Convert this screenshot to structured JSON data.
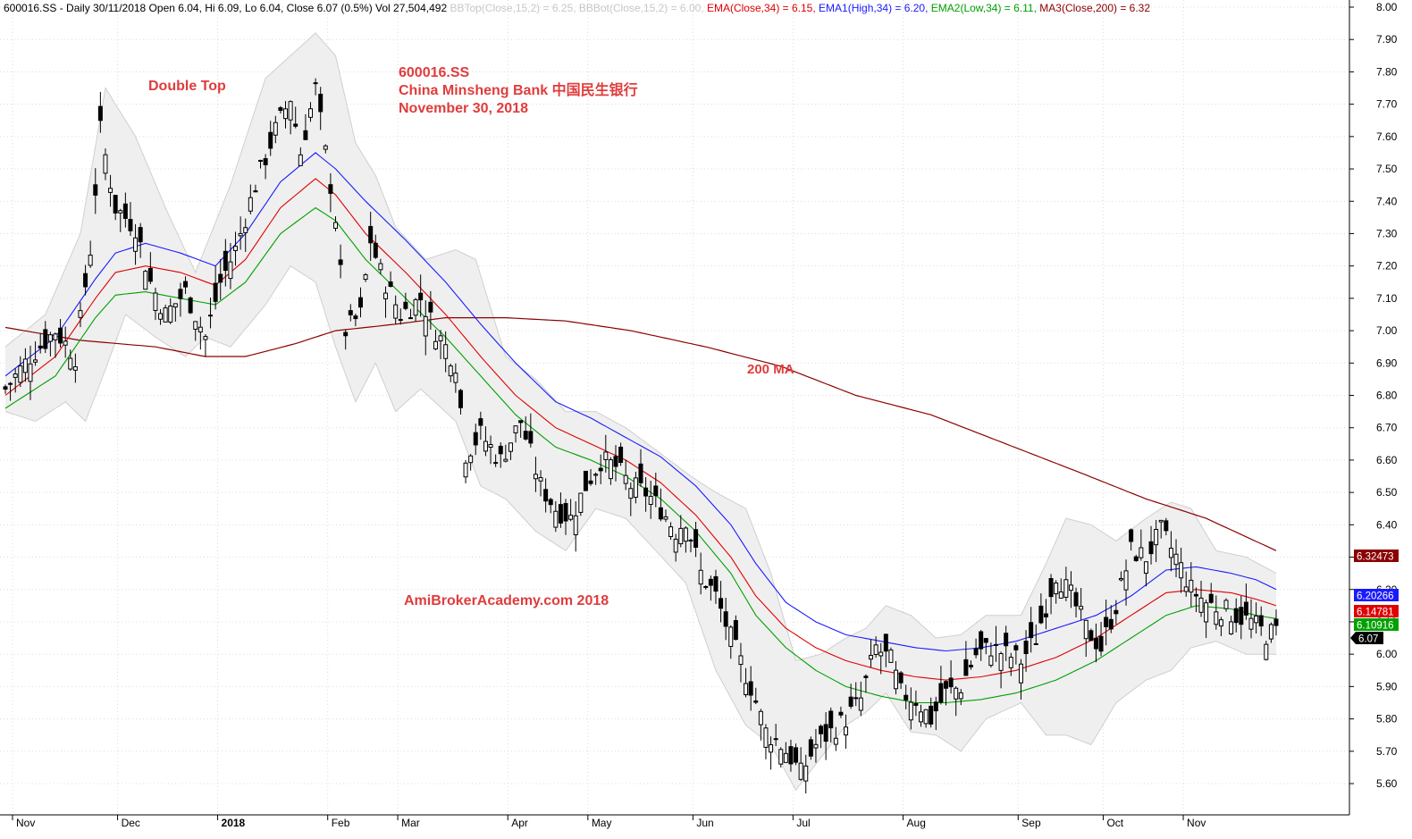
{
  "chart_data": {
    "type": "candlestick",
    "symbol": "600016.SS",
    "header": {
      "prefix": "600016.SS - Daily 30/11/2018 Open 6.04, Hi 6.09, Lo 6.04, Close 6.07 (0.5%) Vol 27,504,492",
      "items": [
        {
          "text": "BBTop(Close,15,2) = 6.25,",
          "color": "#c8c8c8"
        },
        {
          "text": "BBBot(Close,15,2) = 6.00,",
          "color": "#c8c8c8"
        },
        {
          "text": "EMA(Close,34) = 6.15,",
          "color": "#e00000"
        },
        {
          "text": "EMA1(High,34) = 6.20,",
          "color": "#1a1aff"
        },
        {
          "text": "EMA2(Low,34) = 6.11,",
          "color": "#00a000"
        },
        {
          "text": "MA3(Close,200) = 6.32",
          "color": "#8b0000"
        }
      ]
    },
    "annotations": {
      "pattern": "Double Top",
      "title_lines": [
        "600016.SS",
        "China Minsheng Bank 中国民生银行",
        "November 30, 2018"
      ],
      "ma_label": "200 MA",
      "watermark": "AmiBrokerAcademy.com  2018"
    },
    "ylim": [
      5.55,
      8.02
    ],
    "y_ticks": [
      "5.60",
      "5.70",
      "5.80",
      "5.90",
      "6.00",
      "6.10",
      "6.20",
      "6.30",
      "6.40",
      "6.50",
      "6.60",
      "6.70",
      "6.80",
      "6.90",
      "7.00",
      "7.10",
      "7.20",
      "7.30",
      "7.40",
      "7.50",
      "7.60",
      "7.70",
      "7.80",
      "7.90",
      "8.00"
    ],
    "x_months": [
      {
        "label": "Nov",
        "idx": 0,
        "bold": false
      },
      {
        "label": "Dec",
        "idx": 21,
        "bold": false
      },
      {
        "label": "2018",
        "idx": 41,
        "bold": true
      },
      {
        "label": "Feb",
        "idx": 63,
        "bold": false
      },
      {
        "label": "Mar",
        "idx": 77,
        "bold": false
      },
      {
        "label": "Apr",
        "idx": 99,
        "bold": false
      },
      {
        "label": "May",
        "idx": 115,
        "bold": false
      },
      {
        "label": "Jun",
        "idx": 136,
        "bold": false
      },
      {
        "label": "Jul",
        "idx": 156,
        "bold": false
      },
      {
        "label": "Aug",
        "idx": 178,
        "bold": false
      },
      {
        "label": "Sep",
        "idx": 201,
        "bold": false
      },
      {
        "label": "Oct",
        "idx": 218,
        "bold": false
      },
      {
        "label": "Nov",
        "idx": 234,
        "bold": false
      }
    ],
    "n_bars": 255,
    "close_anchors": [
      [
        0,
        6.82
      ],
      [
        5,
        6.92
      ],
      [
        10,
        7.0
      ],
      [
        14,
        6.92
      ],
      [
        17,
        7.25
      ],
      [
        19,
        7.62
      ],
      [
        22,
        7.38
      ],
      [
        26,
        7.32
      ],
      [
        29,
        7.15
      ],
      [
        32,
        7.05
      ],
      [
        36,
        7.12
      ],
      [
        40,
        6.98
      ],
      [
        43,
        7.15
      ],
      [
        46,
        7.25
      ],
      [
        50,
        7.45
      ],
      [
        54,
        7.62
      ],
      [
        57,
        7.72
      ],
      [
        59,
        7.55
      ],
      [
        62,
        7.75
      ],
      [
        64,
        7.55
      ],
      [
        66,
        7.35
      ],
      [
        68,
        7.0
      ],
      [
        71,
        7.05
      ],
      [
        73,
        7.28
      ],
      [
        75,
        7.18
      ],
      [
        79,
        7.05
      ],
      [
        83,
        7.1
      ],
      [
        86,
        7.0
      ],
      [
        90,
        6.9
      ],
      [
        92,
        6.62
      ],
      [
        95,
        6.68
      ],
      [
        99,
        6.6
      ],
      [
        103,
        6.72
      ],
      [
        107,
        6.52
      ],
      [
        110,
        6.45
      ],
      [
        113,
        6.42
      ],
      [
        116,
        6.52
      ],
      [
        119,
        6.6
      ],
      [
        122,
        6.58
      ],
      [
        125,
        6.52
      ],
      [
        128,
        6.5
      ],
      [
        131,
        6.45
      ],
      [
        134,
        6.38
      ],
      [
        136,
        6.42
      ],
      [
        139,
        6.25
      ],
      [
        142,
        6.18
      ],
      [
        145,
        6.05
      ],
      [
        149,
        5.9
      ],
      [
        152,
        5.76
      ],
      [
        155,
        5.72
      ],
      [
        157,
        5.68
      ],
      [
        159,
        5.63
      ],
      [
        162,
        5.72
      ],
      [
        165,
        5.76
      ],
      [
        168,
        5.8
      ],
      [
        171,
        5.86
      ],
      [
        174,
        6.02
      ],
      [
        177,
        5.98
      ],
      [
        179,
        5.88
      ],
      [
        182,
        5.86
      ],
      [
        185,
        5.8
      ],
      [
        188,
        5.88
      ],
      [
        191,
        5.9
      ],
      [
        194,
        6.0
      ],
      [
        197,
        6.02
      ],
      [
        200,
        6.0
      ],
      [
        203,
        5.98
      ],
      [
        206,
        6.05
      ],
      [
        210,
        6.25
      ],
      [
        213,
        6.18
      ],
      [
        216,
        6.08
      ],
      [
        219,
        6.02
      ],
      [
        222,
        6.15
      ],
      [
        225,
        6.32
      ],
      [
        228,
        6.3
      ],
      [
        231,
        6.38
      ],
      [
        234,
        6.3
      ],
      [
        237,
        6.2
      ],
      [
        240,
        6.16
      ],
      [
        243,
        6.14
      ],
      [
        246,
        6.12
      ],
      [
        249,
        6.1
      ],
      [
        252,
        6.06
      ],
      [
        254,
        6.07
      ]
    ],
    "ema_close_anchors": [
      [
        0,
        6.8
      ],
      [
        10,
        6.92
      ],
      [
        18,
        7.1
      ],
      [
        22,
        7.18
      ],
      [
        28,
        7.2
      ],
      [
        35,
        7.18
      ],
      [
        42,
        7.14
      ],
      [
        48,
        7.22
      ],
      [
        55,
        7.38
      ],
      [
        62,
        7.47
      ],
      [
        66,
        7.42
      ],
      [
        72,
        7.3
      ],
      [
        80,
        7.18
      ],
      [
        88,
        7.05
      ],
      [
        95,
        6.92
      ],
      [
        102,
        6.8
      ],
      [
        110,
        6.7
      ],
      [
        117,
        6.65
      ],
      [
        124,
        6.6
      ],
      [
        131,
        6.53
      ],
      [
        138,
        6.43
      ],
      [
        145,
        6.3
      ],
      [
        150,
        6.18
      ],
      [
        156,
        6.08
      ],
      [
        162,
        6.02
      ],
      [
        168,
        5.98
      ],
      [
        175,
        5.95
      ],
      [
        182,
        5.93
      ],
      [
        188,
        5.92
      ],
      [
        195,
        5.93
      ],
      [
        202,
        5.95
      ],
      [
        210,
        5.99
      ],
      [
        218,
        6.05
      ],
      [
        225,
        6.12
      ],
      [
        232,
        6.19
      ],
      [
        238,
        6.2
      ],
      [
        245,
        6.19
      ],
      [
        250,
        6.17
      ],
      [
        254,
        6.15
      ]
    ],
    "ema_high_anchors": [
      [
        0,
        6.86
      ],
      [
        10,
        6.98
      ],
      [
        18,
        7.16
      ],
      [
        22,
        7.24
      ],
      [
        28,
        7.27
      ],
      [
        35,
        7.24
      ],
      [
        42,
        7.2
      ],
      [
        48,
        7.3
      ],
      [
        55,
        7.46
      ],
      [
        62,
        7.55
      ],
      [
        66,
        7.5
      ],
      [
        72,
        7.4
      ],
      [
        80,
        7.28
      ],
      [
        88,
        7.15
      ],
      [
        95,
        7.02
      ],
      [
        102,
        6.9
      ],
      [
        110,
        6.78
      ],
      [
        117,
        6.73
      ],
      [
        124,
        6.67
      ],
      [
        131,
        6.61
      ],
      [
        138,
        6.52
      ],
      [
        145,
        6.4
      ],
      [
        150,
        6.28
      ],
      [
        156,
        6.16
      ],
      [
        162,
        6.1
      ],
      [
        168,
        6.06
      ],
      [
        175,
        6.04
      ],
      [
        182,
        6.02
      ],
      [
        188,
        6.01
      ],
      [
        195,
        6.02
      ],
      [
        202,
        6.04
      ],
      [
        210,
        6.08
      ],
      [
        218,
        6.12
      ],
      [
        225,
        6.18
      ],
      [
        232,
        6.26
      ],
      [
        238,
        6.27
      ],
      [
        245,
        6.25
      ],
      [
        250,
        6.23
      ],
      [
        254,
        6.2
      ]
    ],
    "ema_low_anchors": [
      [
        0,
        6.76
      ],
      [
        10,
        6.86
      ],
      [
        18,
        7.04
      ],
      [
        22,
        7.11
      ],
      [
        28,
        7.12
      ],
      [
        35,
        7.1
      ],
      [
        42,
        7.08
      ],
      [
        48,
        7.15
      ],
      [
        55,
        7.3
      ],
      [
        62,
        7.38
      ],
      [
        66,
        7.34
      ],
      [
        72,
        7.22
      ],
      [
        80,
        7.1
      ],
      [
        88,
        6.98
      ],
      [
        95,
        6.86
      ],
      [
        102,
        6.74
      ],
      [
        110,
        6.64
      ],
      [
        117,
        6.6
      ],
      [
        124,
        6.55
      ],
      [
        131,
        6.48
      ],
      [
        138,
        6.38
      ],
      [
        145,
        6.25
      ],
      [
        150,
        6.12
      ],
      [
        156,
        6.02
      ],
      [
        162,
        5.95
      ],
      [
        168,
        5.9
      ],
      [
        175,
        5.87
      ],
      [
        182,
        5.85
      ],
      [
        188,
        5.85
      ],
      [
        195,
        5.86
      ],
      [
        202,
        5.88
      ],
      [
        210,
        5.92
      ],
      [
        218,
        5.98
      ],
      [
        225,
        6.05
      ],
      [
        232,
        6.12
      ],
      [
        238,
        6.15
      ],
      [
        245,
        6.14
      ],
      [
        250,
        6.12
      ],
      [
        254,
        6.11
      ]
    ],
    "ma200_anchors": [
      [
        0,
        7.01
      ],
      [
        15,
        6.97
      ],
      [
        30,
        6.95
      ],
      [
        40,
        6.92
      ],
      [
        48,
        6.92
      ],
      [
        58,
        6.96
      ],
      [
        66,
        7.0
      ],
      [
        78,
        7.02
      ],
      [
        88,
        7.04
      ],
      [
        100,
        7.04
      ],
      [
        112,
        7.03
      ],
      [
        125,
        7.0
      ],
      [
        140,
        6.95
      ],
      [
        155,
        6.89
      ],
      [
        170,
        6.8
      ],
      [
        185,
        6.74
      ],
      [
        200,
        6.65
      ],
      [
        215,
        6.56
      ],
      [
        228,
        6.48
      ],
      [
        240,
        6.42
      ],
      [
        254,
        6.32
      ]
    ],
    "bb_top_anchors": [
      [
        0,
        6.95
      ],
      [
        8,
        7.05
      ],
      [
        15,
        7.3
      ],
      [
        20,
        7.75
      ],
      [
        26,
        7.6
      ],
      [
        32,
        7.38
      ],
      [
        38,
        7.18
      ],
      [
        45,
        7.45
      ],
      [
        52,
        7.78
      ],
      [
        57,
        7.85
      ],
      [
        62,
        7.92
      ],
      [
        66,
        7.85
      ],
      [
        70,
        7.58
      ],
      [
        74,
        7.48
      ],
      [
        78,
        7.32
      ],
      [
        84,
        7.22
      ],
      [
        90,
        7.25
      ],
      [
        94,
        7.22
      ],
      [
        100,
        6.92
      ],
      [
        106,
        6.85
      ],
      [
        112,
        6.75
      ],
      [
        118,
        6.75
      ],
      [
        124,
        6.7
      ],
      [
        131,
        6.62
      ],
      [
        137,
        6.55
      ],
      [
        142,
        6.5
      ],
      [
        148,
        6.45
      ],
      [
        153,
        6.25
      ],
      [
        158,
        5.98
      ],
      [
        163,
        6.0
      ],
      [
        168,
        6.05
      ],
      [
        172,
        6.08
      ],
      [
        176,
        6.15
      ],
      [
        181,
        6.12
      ],
      [
        186,
        6.05
      ],
      [
        191,
        6.06
      ],
      [
        196,
        6.12
      ],
      [
        203,
        6.12
      ],
      [
        208,
        6.28
      ],
      [
        212,
        6.42
      ],
      [
        217,
        6.4
      ],
      [
        222,
        6.35
      ],
      [
        228,
        6.42
      ],
      [
        233,
        6.47
      ],
      [
        237,
        6.45
      ],
      [
        242,
        6.32
      ],
      [
        248,
        6.3
      ],
      [
        254,
        6.25
      ]
    ],
    "bb_bot_anchors": [
      [
        0,
        6.75
      ],
      [
        6,
        6.72
      ],
      [
        12,
        6.78
      ],
      [
        16,
        6.72
      ],
      [
        20,
        6.88
      ],
      [
        24,
        7.05
      ],
      [
        30,
        6.98
      ],
      [
        36,
        6.92
      ],
      [
        40,
        6.98
      ],
      [
        45,
        6.95
      ],
      [
        52,
        7.08
      ],
      [
        57,
        7.2
      ],
      [
        62,
        7.15
      ],
      [
        66,
        6.95
      ],
      [
        70,
        6.78
      ],
      [
        74,
        6.9
      ],
      [
        78,
        6.75
      ],
      [
        83,
        6.82
      ],
      [
        90,
        6.72
      ],
      [
        95,
        6.52
      ],
      [
        100,
        6.48
      ],
      [
        106,
        6.38
      ],
      [
        112,
        6.32
      ],
      [
        118,
        6.45
      ],
      [
        124,
        6.42
      ],
      [
        130,
        6.32
      ],
      [
        136,
        6.22
      ],
      [
        142,
        5.95
      ],
      [
        148,
        5.78
      ],
      [
        153,
        5.72
      ],
      [
        158,
        5.58
      ],
      [
        163,
        5.68
      ],
      [
        168,
        5.78
      ],
      [
        172,
        5.82
      ],
      [
        176,
        5.88
      ],
      [
        181,
        5.76
      ],
      [
        186,
        5.75
      ],
      [
        191,
        5.7
      ],
      [
        196,
        5.8
      ],
      [
        203,
        5.85
      ],
      [
        208,
        5.75
      ],
      [
        212,
        5.75
      ],
      [
        217,
        5.72
      ],
      [
        222,
        5.85
      ],
      [
        228,
        5.92
      ],
      [
        233,
        5.95
      ],
      [
        237,
        6.02
      ],
      [
        242,
        6.04
      ],
      [
        248,
        6.0
      ],
      [
        254,
        6.0
      ]
    ],
    "last_labels": [
      {
        "name": "MA200",
        "value": "6.32473",
        "bg": "#8b0000",
        "fg": "#ffffff"
      },
      {
        "name": "EMA1 High",
        "value": "6.20266",
        "bg": "#1a1aff",
        "fg": "#ffffff"
      },
      {
        "name": "EMA Close",
        "value": "6.14781",
        "bg": "#e00000",
        "fg": "#ffffff"
      },
      {
        "name": "EMA2 Low",
        "value": "6.10916",
        "bg": "#00a000",
        "fg": "#ffffff"
      },
      {
        "name": "Close",
        "value": "6.07",
        "bg": "#000000",
        "fg": "#ffffff"
      }
    ],
    "colors": {
      "ema_close": "#e00000",
      "ema_high": "#1a1aff",
      "ema_low": "#00a000",
      "ma200": "#8b0000",
      "bb_fill": "#efefef",
      "bb_edge": "#cfcfcf",
      "candle": "#000000",
      "annotation": "#e03c3c",
      "grid": "#dcdcdc"
    },
    "grid": true
  }
}
